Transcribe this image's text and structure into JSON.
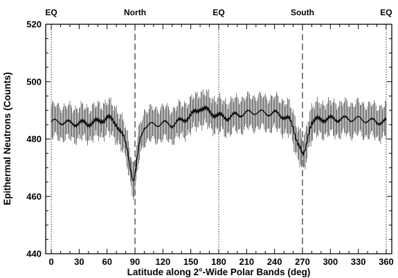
{
  "chart_data": {
    "type": "line",
    "title": "",
    "xlabel": "Latitude along 2°-Wide Polar Bands (deg)",
    "ylabel": "Epithermal Neutrons (Counts)",
    "xlim": [
      -6,
      366
    ],
    "ylim": [
      440,
      520
    ],
    "x_ticks": [
      0,
      30,
      60,
      90,
      120,
      150,
      180,
      210,
      240,
      270,
      300,
      330,
      360
    ],
    "y_ticks": [
      440,
      460,
      480,
      500,
      520
    ],
    "top_labels": [
      {
        "x": 0,
        "text": "EQ"
      },
      {
        "x": 90,
        "text": "North"
      },
      {
        "x": 180,
        "text": "EQ"
      },
      {
        "x": 270,
        "text": "South"
      },
      {
        "x": 360,
        "text": "EQ"
      }
    ],
    "vertical_lines": [
      {
        "x": 0,
        "style": "dotted"
      },
      {
        "x": 90,
        "style": "dashed"
      },
      {
        "x": 180,
        "style": "dotted"
      },
      {
        "x": 270,
        "style": "dashed"
      },
      {
        "x": 360,
        "style": "dotted"
      }
    ],
    "grid": false,
    "series": [
      {
        "x": [
          0,
          10,
          20,
          30,
          40,
          50,
          60,
          70,
          74,
          78,
          82,
          86,
          88,
          90,
          92,
          94,
          96,
          100,
          110,
          120,
          130,
          140,
          150,
          160,
          170,
          180,
          190,
          200,
          210,
          220,
          230,
          240,
          250,
          256,
          260,
          264,
          268,
          270,
          272,
          274,
          276,
          278,
          280,
          290,
          300,
          310,
          320,
          330,
          340,
          350,
          360
        ],
        "y": [
          486,
          486,
          485.5,
          485.5,
          485.5,
          486,
          487.5,
          485.5,
          483,
          480,
          476,
          469,
          465.5,
          467,
          472,
          477,
          480.5,
          484.5,
          485,
          485.5,
          485,
          486.5,
          488,
          491,
          489.5,
          488,
          487.5,
          488.5,
          489,
          489.5,
          489,
          489,
          488,
          486.5,
          484,
          480,
          476.5,
          474,
          474.5,
          477.5,
          481.5,
          484.5,
          486,
          487,
          487,
          487,
          487,
          487,
          486.5,
          486,
          486
        ],
        "error": 5.5
      }
    ]
  }
}
